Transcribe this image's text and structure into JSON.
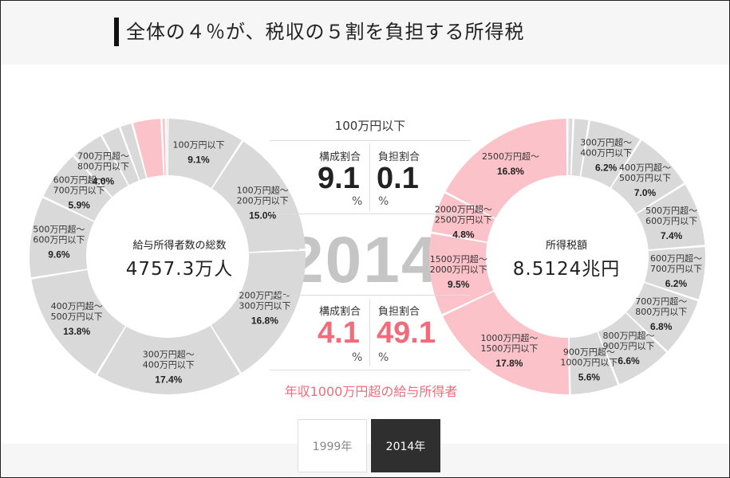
{
  "title": "全体の４％が、税収の５割を負担する所得税",
  "year_background": "2014",
  "middle": {
    "category": "100万円以下",
    "top": {
      "label_share": "構成割合",
      "label_burden": "負担割合",
      "share": "9.1",
      "burden": "0.1",
      "unit": "%"
    },
    "bottom": {
      "label_share": "構成割合",
      "label_burden": "負担割合",
      "share": "4.1",
      "burden": "49.1",
      "unit": "%"
    },
    "bottom_caption": "年収1000万円超の給与所得者"
  },
  "buttons": {
    "b1999": "1999年",
    "b2014": "2014年"
  },
  "colors": {
    "highlight": "#f26b7a",
    "pink_fill": "#fbc3c9",
    "gray_fill": "#d9d9d9"
  },
  "chart_data": [
    {
      "type": "pie",
      "title": "給与所得者数の総数",
      "center_value": "4757.3万人",
      "slices": [
        {
          "label": [
            "100万円以下"
          ],
          "value": 9.1,
          "display": "9.1%",
          "highlight": false
        },
        {
          "label": [
            "100万円超～",
            "200万円以下"
          ],
          "value": 15.0,
          "display": "15.0%",
          "highlight": false
        },
        {
          "label": [
            "200万円超～",
            "300万円以下"
          ],
          "value": 16.8,
          "display": "16.8%",
          "highlight": false
        },
        {
          "label": [
            "300万円超～",
            "400万円以下"
          ],
          "value": 17.4,
          "display": "17.4%",
          "highlight": false
        },
        {
          "label": [
            "400万円超～",
            "500万円以下"
          ],
          "value": 13.8,
          "display": "13.8%",
          "highlight": false
        },
        {
          "label": [
            "500万円超～",
            "600万円以下"
          ],
          "value": 9.6,
          "display": "9.6%",
          "highlight": false
        },
        {
          "label": [
            "600万円超～",
            "700万円以下"
          ],
          "value": 5.9,
          "display": "5.9%",
          "highlight": false
        },
        {
          "label": [
            "700万円超～",
            "800万円以下"
          ],
          "value": 4.0,
          "display": "4.0%",
          "highlight": false
        },
        {
          "label": [],
          "value": 2.3,
          "display": "",
          "highlight": false
        },
        {
          "label": [],
          "value": 1.5,
          "display": "",
          "highlight": false
        },
        {
          "label": [],
          "value": 3.4,
          "display": "",
          "highlight": true
        },
        {
          "label": [],
          "value": 0.5,
          "display": "",
          "highlight": true
        },
        {
          "label": [],
          "value": 0.2,
          "display": "",
          "highlight": true
        }
      ]
    },
    {
      "type": "pie",
      "title": "所得税額",
      "center_value": "8.5124兆円",
      "slices": [
        {
          "label": [],
          "value": 0.1,
          "display": "",
          "highlight": false
        },
        {
          "label": [],
          "value": 0.6,
          "display": "",
          "highlight": false
        },
        {
          "label": [],
          "value": 1.8,
          "display": "",
          "highlight": false
        },
        {
          "label": [
            "300万円超～",
            "400万円以下"
          ],
          "value": 6.2,
          "display": "6.2%",
          "highlight": false
        },
        {
          "label": [
            "400万円超～",
            "500万円以下"
          ],
          "value": 7.0,
          "display": "7.0%",
          "highlight": false
        },
        {
          "label": [
            "500万円超～",
            "600万円以下"
          ],
          "value": 7.4,
          "display": "7.4%",
          "highlight": false
        },
        {
          "label": [
            "600万円超～",
            "700万円以下"
          ],
          "value": 6.2,
          "display": "6.2%",
          "highlight": false
        },
        {
          "label": [
            "700万円超～",
            "800万円以下"
          ],
          "value": 6.8,
          "display": "6.8%",
          "highlight": false
        },
        {
          "label": [
            "800万円超～",
            "900万円以下"
          ],
          "value": 6.6,
          "display": "6.6%",
          "highlight": false
        },
        {
          "label": [
            "900万円超～",
            "1000万円以下"
          ],
          "value": 5.6,
          "display": "5.6%",
          "highlight": false
        },
        {
          "label": [
            "1000万円超～",
            "1500万円以下"
          ],
          "value": 17.8,
          "display": "17.8%",
          "highlight": true
        },
        {
          "label": [
            "1500万円超～",
            "2000万円以下"
          ],
          "value": 9.5,
          "display": "9.5%",
          "highlight": true
        },
        {
          "label": [
            "2000万円超～",
            "2500万円以下"
          ],
          "value": 4.8,
          "display": "4.8%",
          "highlight": true
        },
        {
          "label": [
            "2500万円超～"
          ],
          "value": 16.8,
          "display": "16.8%",
          "highlight": true
        }
      ]
    }
  ]
}
